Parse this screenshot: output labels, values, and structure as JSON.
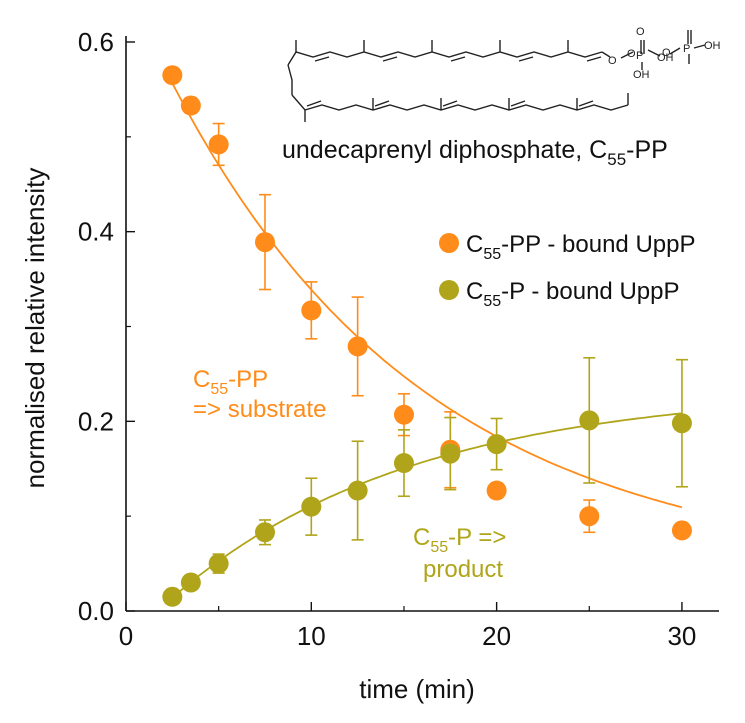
{
  "chart_data": {
    "type": "scatter",
    "xlabel": "time (min)",
    "ylabel": "normalised relative intensity",
    "xlim": [
      0,
      32
    ],
    "ylim": [
      0,
      0.6
    ],
    "x_ticks": [
      0,
      10,
      20,
      30
    ],
    "x_tick_labels": [
      "0",
      "10",
      "20",
      "30"
    ],
    "y_ticks": [
      0.0,
      0.2,
      0.4,
      0.6
    ],
    "y_tick_labels": [
      "0.0",
      "0.2",
      "0.4",
      "0.6"
    ],
    "legend_position": "right",
    "series": [
      {
        "name_main": "C",
        "name_sub": "55",
        "name_rest": "-PP - bound UppP",
        "color": "#ff8c1a",
        "x": [
          2.5,
          3.5,
          5,
          7.5,
          10,
          12.5,
          15,
          17.5,
          20,
          25,
          30
        ],
        "y": [
          0.565,
          0.533,
          0.492,
          0.389,
          0.317,
          0.279,
          0.207,
          0.17,
          0.127,
          0.1,
          0.085
        ],
        "err": [
          0.005,
          0.008,
          0.022,
          0.05,
          0.03,
          0.052,
          0.022,
          0.04,
          0.008,
          0.017,
          0.006
        ],
        "fit": {
          "model": "exponential_decay",
          "a": 0.62,
          "k": 0.073,
          "c": 0.04
        }
      },
      {
        "name_main": "C",
        "name_sub": "55",
        "name_rest": "-P - bound UppP",
        "color": "#b0a51a",
        "x": [
          2.5,
          3.5,
          5,
          7.5,
          10,
          12.5,
          15,
          17.5,
          20,
          25,
          30
        ],
        "y": [
          0.015,
          0.03,
          0.05,
          0.083,
          0.11,
          0.127,
          0.156,
          0.166,
          0.176,
          0.201,
          0.198
        ],
        "err": [
          0.006,
          0.006,
          0.01,
          0.013,
          0.03,
          0.052,
          0.035,
          0.038,
          0.027,
          0.066,
          0.067
        ],
        "fit": {
          "model": "saturation",
          "a": 0.235,
          "k": 0.077,
          "x0": 1.7
        }
      }
    ],
    "annotations": [
      {
        "main": "C",
        "sub": "55",
        "rest": "-PP",
        "line2": "=> substrate",
        "color": "#ff8c1a"
      },
      {
        "main": "C",
        "sub": "55",
        "rest": "-P =>",
        "line2": "product",
        "color": "#b0a51a"
      }
    ],
    "inset": {
      "label_main": "undecaprenyl diphosphate, C",
      "label_sub": "55",
      "label_rest": "-PP",
      "atom_labels": [
        "O",
        "O",
        "P",
        "O",
        "OH",
        "OH",
        "O",
        "P",
        "OH"
      ]
    }
  }
}
